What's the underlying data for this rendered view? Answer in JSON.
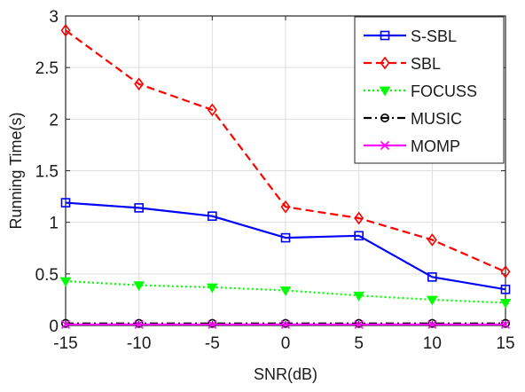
{
  "chart_data": {
    "type": "line",
    "title": "",
    "xlabel": "SNR(dB)",
    "ylabel": "Running Time(s)",
    "x": [
      -15,
      -10,
      -5,
      0,
      5,
      10,
      15
    ],
    "xlim": [
      -15,
      15
    ],
    "ylim": [
      0,
      3
    ],
    "xticks": [
      -15,
      -10,
      -5,
      0,
      5,
      10,
      15
    ],
    "yticks": [
      0,
      0.5,
      1,
      1.5,
      2,
      2.5,
      3
    ],
    "xtick_labels": [
      "-15",
      "-10",
      "-5",
      "0",
      "5",
      "10",
      "15"
    ],
    "ytick_labels": [
      "0",
      "0.5",
      "1",
      "1.5",
      "2",
      "2.5",
      "3"
    ],
    "grid": true,
    "legend_position": "top-right",
    "series": [
      {
        "name": "S-SBL",
        "values": [
          1.19,
          1.14,
          1.06,
          0.85,
          0.87,
          0.47,
          0.35
        ],
        "color": "#0000ff",
        "dash": "solid",
        "marker": "square"
      },
      {
        "name": "SBL",
        "values": [
          2.86,
          2.34,
          2.09,
          1.15,
          1.04,
          0.83,
          0.52
        ],
        "color": "#ff0000",
        "dash": "dashed",
        "marker": "diamond"
      },
      {
        "name": "FOCUSS",
        "values": [
          0.43,
          0.39,
          0.37,
          0.34,
          0.29,
          0.25,
          0.22
        ],
        "color": "#00ff00",
        "dash": "dotted",
        "marker": "triangle-down"
      },
      {
        "name": "MUSIC",
        "values": [
          0.02,
          0.02,
          0.02,
          0.02,
          0.02,
          0.02,
          0.02
        ],
        "color": "#000000",
        "dash": "dashdot",
        "marker": "circle"
      },
      {
        "name": "MOMP",
        "values": [
          0.01,
          0.01,
          0.01,
          0.01,
          0.01,
          0.01,
          0.01
        ],
        "color": "#ff00ff",
        "dash": "solid",
        "marker": "x"
      }
    ]
  }
}
